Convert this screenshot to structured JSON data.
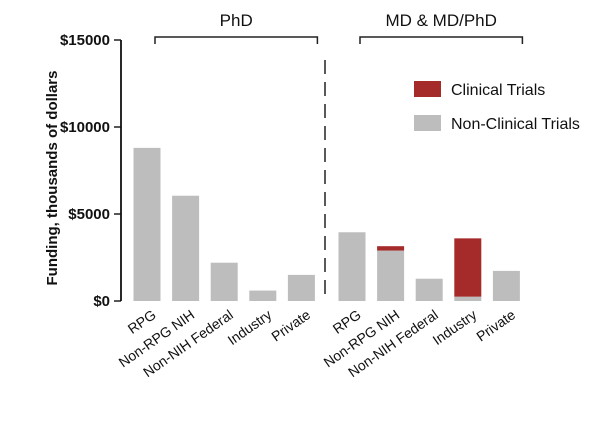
{
  "chart_data": {
    "type": "bar",
    "stacked": true,
    "title": "",
    "xlabel": "",
    "ylabel": "Funding, thousands of dollars",
    "ylim": [
      0,
      15000
    ],
    "yticks": [
      0,
      5000,
      10000,
      15000
    ],
    "ytick_labels": [
      "$0",
      "$5000",
      "$10000",
      "$15000"
    ],
    "categories": [
      "RPG",
      "Non-RPG NIH",
      "Non-NIH Federal",
      "Industry",
      "Private",
      "RPG",
      "Non-RPG NIH",
      "Non-NIH Federal",
      "Industry",
      "Private"
    ],
    "groups": [
      {
        "label": "PhD",
        "first_index": 0,
        "last_index": 4
      },
      {
        "label": "MD & MD/PhD",
        "first_index": 5,
        "last_index": 9
      }
    ],
    "series": [
      {
        "name": "Non-Clinical Trials",
        "color": "#bdbdbd",
        "values": [
          8800,
          6050,
          2200,
          600,
          1500,
          3950,
          2900,
          1280,
          250,
          1730
        ]
      },
      {
        "name": "Clinical Trials",
        "color": "#a52a2a",
        "values": [
          0,
          0,
          0,
          0,
          0,
          0,
          250,
          0,
          3350,
          0
        ]
      }
    ],
    "legend_entries": [
      "Clinical Trials",
      "Non-Clinical Trials"
    ],
    "legend_position": "top-right",
    "grid": false
  }
}
